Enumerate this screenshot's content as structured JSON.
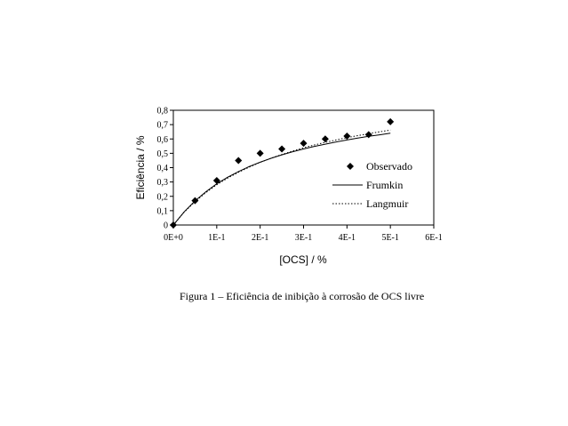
{
  "chart_data": {
    "type": "scatter",
    "xlabel": "[OCS] / %",
    "ylabel": "Eficiência / %",
    "xlim": [
      0,
      0.6
    ],
    "ylim": [
      0,
      0.8
    ],
    "x_ticks": [
      0,
      0.1,
      0.2,
      0.3,
      0.4,
      0.5,
      0.6
    ],
    "x_tick_labels": [
      "0E+0",
      "1E-1",
      "2E-1",
      "3E-1",
      "4E-1",
      "5E-1",
      "6E-1"
    ],
    "y_ticks": [
      0,
      0.1,
      0.2,
      0.3,
      0.4,
      0.5,
      0.6,
      0.7,
      0.8
    ],
    "y_tick_labels": [
      "0",
      "0,1",
      "0,2",
      "0,3",
      "0,4",
      "0,5",
      "0,6",
      "0,7",
      "0,8"
    ],
    "grid": false,
    "legend_position": "right",
    "series": [
      {
        "name": "Observado",
        "style": "diamond-markers",
        "x": [
          0,
          0.05,
          0.1,
          0.15,
          0.2,
          0.25,
          0.3,
          0.35,
          0.4,
          0.45,
          0.5
        ],
        "y": [
          0,
          0.17,
          0.31,
          0.45,
          0.5,
          0.53,
          0.57,
          0.6,
          0.62,
          0.63,
          0.72
        ]
      },
      {
        "name": "Frumkin",
        "style": "solid-line",
        "x": [
          0,
          0.025,
          0.05,
          0.075,
          0.1,
          0.125,
          0.15,
          0.175,
          0.2,
          0.225,
          0.25,
          0.275,
          0.3,
          0.325,
          0.35,
          0.375,
          0.4,
          0.425,
          0.45,
          0.475,
          0.5
        ],
        "y": [
          0,
          0.092,
          0.168,
          0.232,
          0.287,
          0.333,
          0.373,
          0.408,
          0.438,
          0.465,
          0.489,
          0.511,
          0.53,
          0.548,
          0.564,
          0.579,
          0.593,
          0.606,
          0.618,
          0.629,
          0.64
        ]
      },
      {
        "name": "Langmuir",
        "style": "dotted-line",
        "x": [
          0,
          0.025,
          0.05,
          0.075,
          0.1,
          0.125,
          0.15,
          0.175,
          0.2,
          0.225,
          0.25,
          0.275,
          0.3,
          0.325,
          0.35,
          0.375,
          0.4,
          0.425,
          0.45,
          0.475,
          0.5
        ],
        "y": [
          0,
          0.089,
          0.163,
          0.226,
          0.28,
          0.327,
          0.368,
          0.404,
          0.437,
          0.466,
          0.492,
          0.516,
          0.538,
          0.558,
          0.576,
          0.593,
          0.609,
          0.623,
          0.637,
          0.65,
          0.662
        ]
      }
    ]
  },
  "caption": "Figura 1 – Eficiência de inibição à corrosão de OCS livre"
}
